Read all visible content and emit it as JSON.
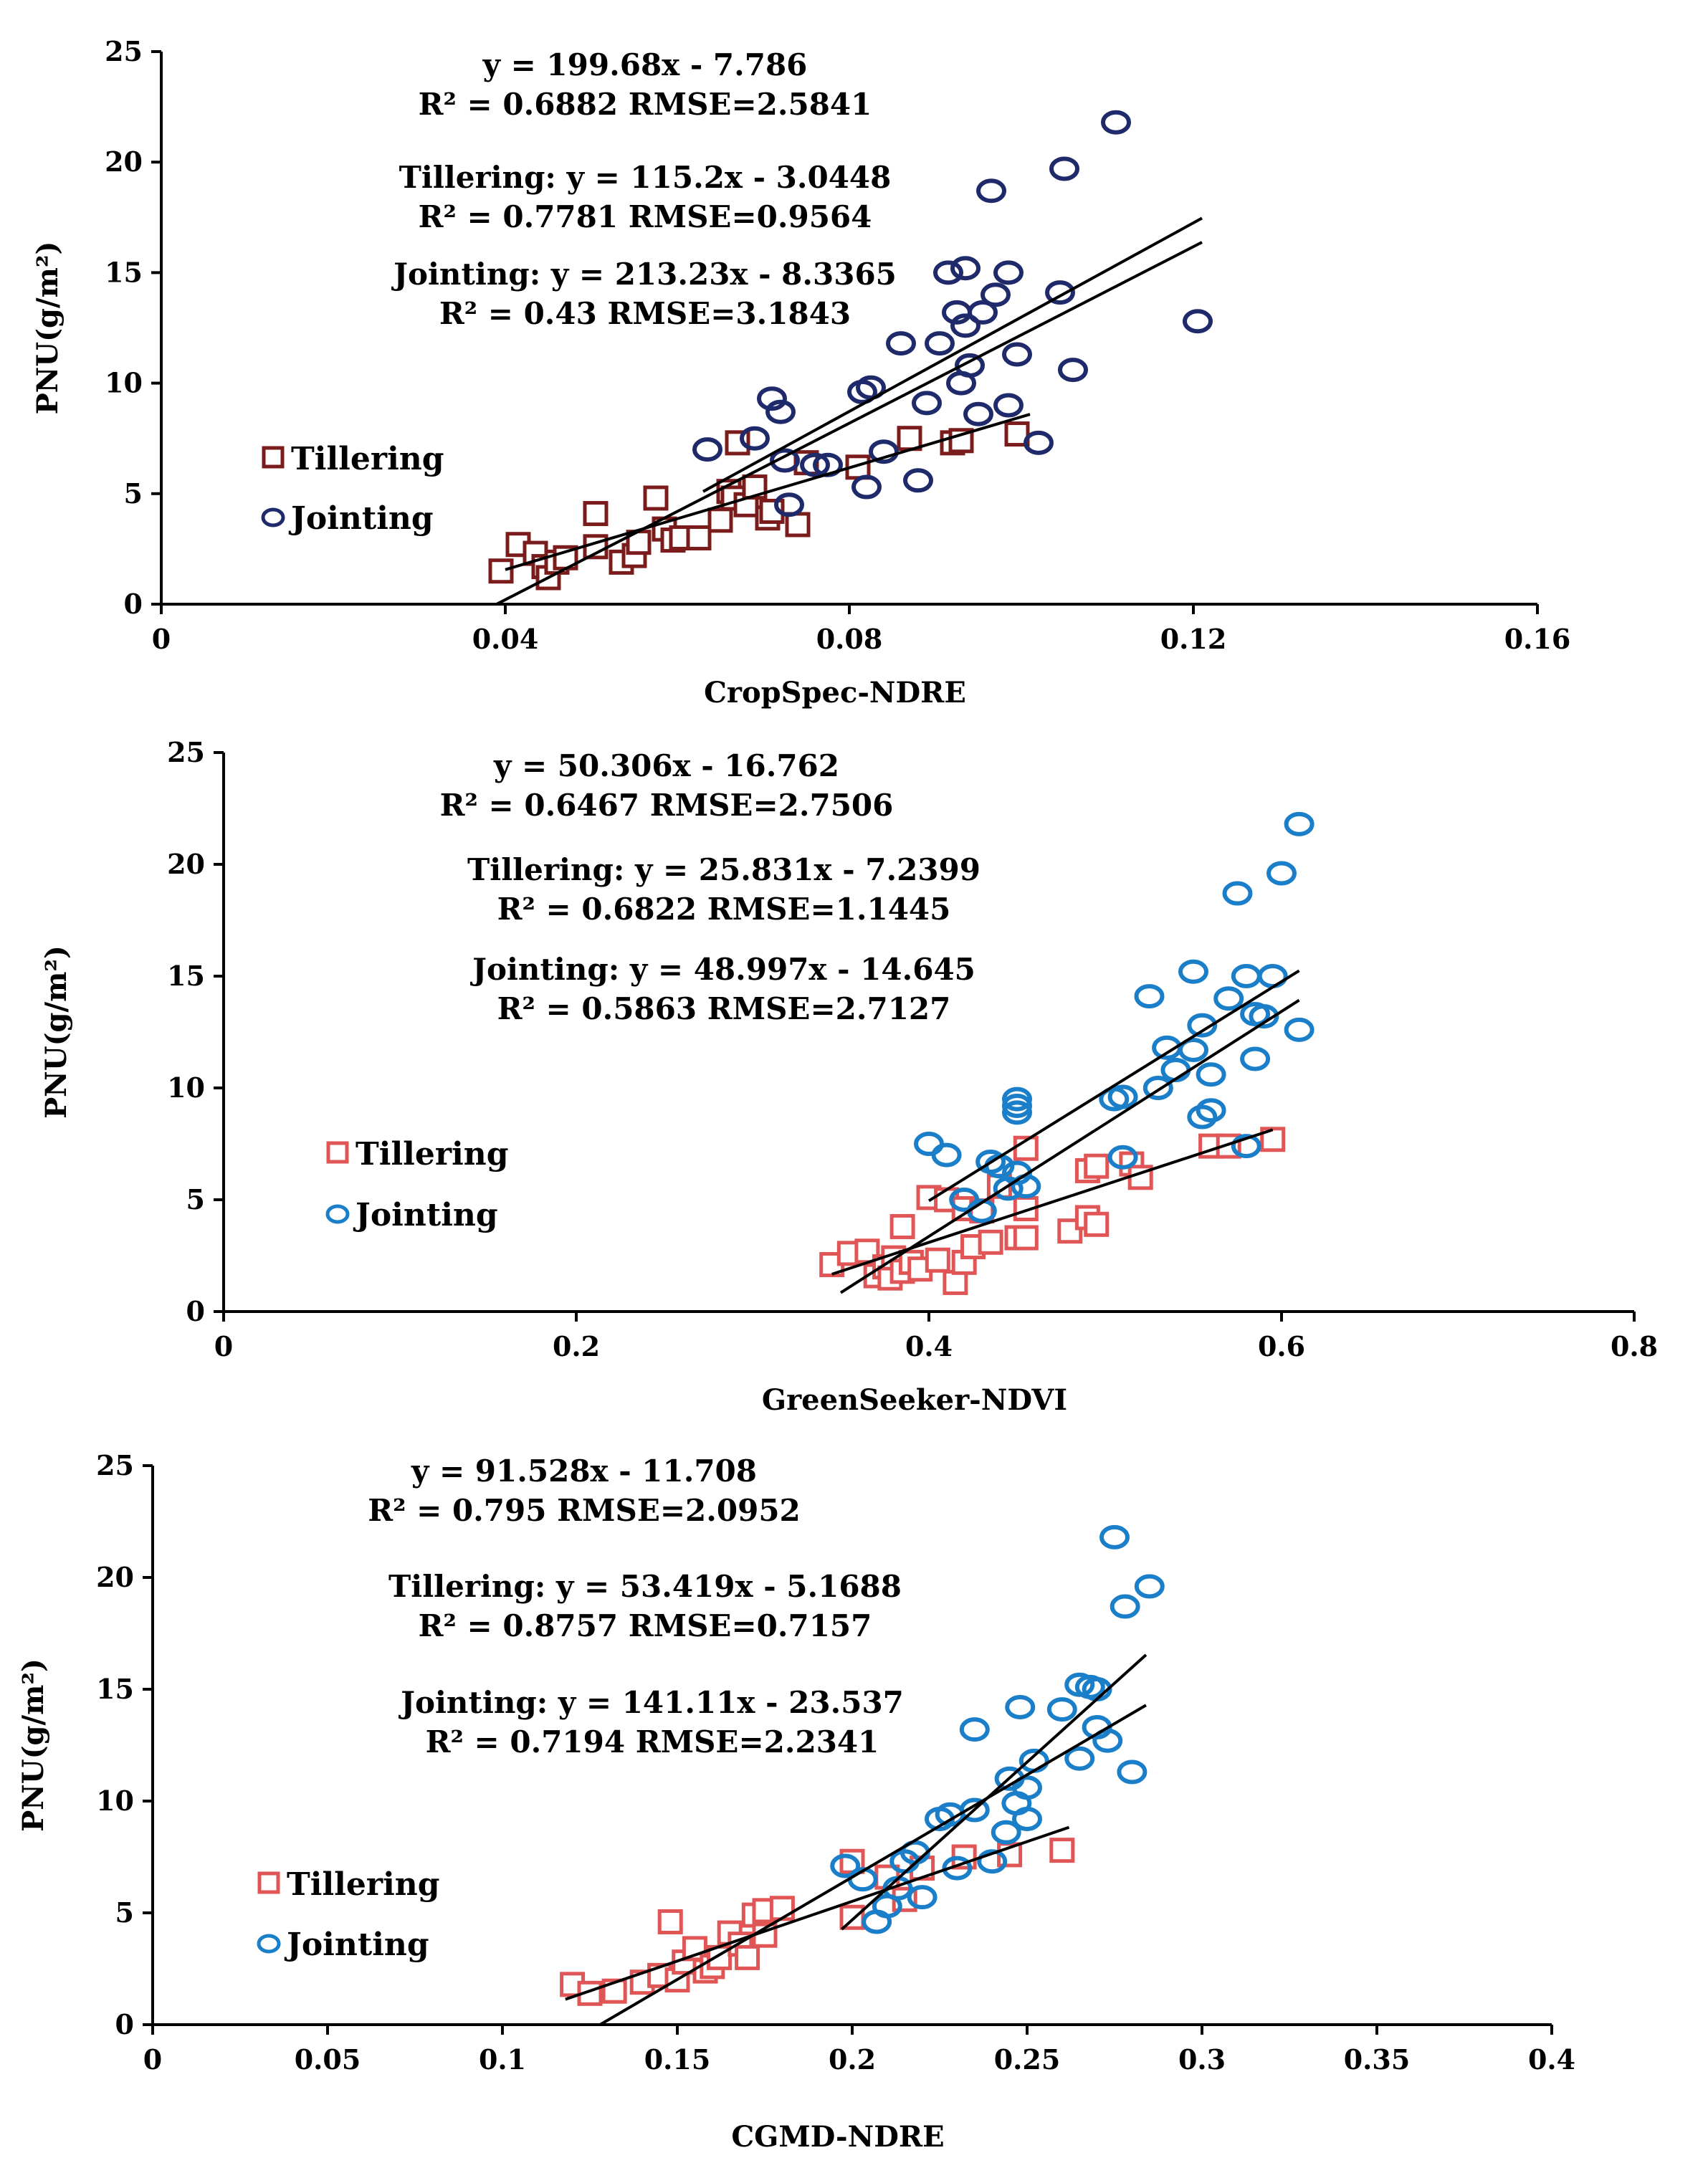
{
  "chart_data": [
    {
      "type": "scatter",
      "xlabel": "CropSpec-NDRE",
      "ylabel": "PNU(g/m²)",
      "xlim": [
        0,
        0.16
      ],
      "ylim": [
        0,
        25
      ],
      "xticks": [
        "0",
        "0.04",
        "0.08",
        "0.12",
        "0.16"
      ],
      "yticks": [
        "0",
        "5",
        "10",
        "15",
        "20",
        "25"
      ],
      "xtick_values": [
        0,
        0.04,
        0.08,
        0.12,
        0.16
      ],
      "ytick_values": [
        0,
        5,
        10,
        15,
        20,
        25
      ],
      "legend": [
        "Tillering",
        "Jointing"
      ],
      "legend_position": "center-left",
      "equations": [
        {
          "line1": "y = 199.68x - 7.786",
          "line2": "R² = 0.6882  RMSE=2.5841"
        },
        {
          "line1": "Tillering: y = 115.2x - 3.0448",
          "line2": "R² = 0.7781  RMSE=0.9564"
        },
        {
          "line1": "Jointing: y = 213.23x - 8.3365",
          "line2": "R² = 0.43  RMSE=3.1843"
        }
      ],
      "colors": {
        "tillering": "#7b1c1c",
        "tillering_fill": "#ffffff",
        "jointing": "#1f2a6b"
      },
      "tillering": [
        [
          0.0395,
          1.5
        ],
        [
          0.0415,
          2.7
        ],
        [
          0.0435,
          2.3
        ],
        [
          0.0445,
          1.7
        ],
        [
          0.045,
          1.2
        ],
        [
          0.046,
          1.9
        ],
        [
          0.047,
          2.1
        ],
        [
          0.0505,
          2.6
        ],
        [
          0.0505,
          4.1
        ],
        [
          0.0535,
          1.9
        ],
        [
          0.055,
          2.2
        ],
        [
          0.0555,
          2.8
        ],
        [
          0.0575,
          4.8
        ],
        [
          0.0585,
          3.4
        ],
        [
          0.0595,
          2.9
        ],
        [
          0.0605,
          3.0
        ],
        [
          0.0625,
          3.0
        ],
        [
          0.065,
          3.8
        ],
        [
          0.066,
          5.1
        ],
        [
          0.0665,
          4.8
        ],
        [
          0.067,
          7.3
        ],
        [
          0.068,
          4.5
        ],
        [
          0.069,
          5.3
        ],
        [
          0.0705,
          3.9
        ],
        [
          0.071,
          4.2
        ],
        [
          0.074,
          3.6
        ],
        [
          0.075,
          6.4
        ],
        [
          0.081,
          6.2
        ],
        [
          0.087,
          7.5
        ],
        [
          0.092,
          7.3
        ],
        [
          0.093,
          7.4
        ],
        [
          0.0995,
          7.7
        ]
      ],
      "jointing": [
        [
          0.0635,
          7.0
        ],
        [
          0.069,
          7.5
        ],
        [
          0.071,
          9.3
        ],
        [
          0.072,
          8.7
        ],
        [
          0.0725,
          6.5
        ],
        [
          0.073,
          4.5
        ],
        [
          0.076,
          6.3
        ],
        [
          0.0775,
          6.3
        ],
        [
          0.0815,
          9.6
        ],
        [
          0.0825,
          9.8
        ],
        [
          0.082,
          5.3
        ],
        [
          0.084,
          6.9
        ],
        [
          0.086,
          11.8
        ],
        [
          0.088,
          5.6
        ],
        [
          0.089,
          9.1
        ],
        [
          0.0905,
          11.8
        ],
        [
          0.0915,
          15.0
        ],
        [
          0.0925,
          13.2
        ],
        [
          0.093,
          10.0
        ],
        [
          0.0935,
          15.2
        ],
        [
          0.0935,
          12.6
        ],
        [
          0.094,
          10.8
        ],
        [
          0.095,
          8.6
        ],
        [
          0.0955,
          13.2
        ],
        [
          0.0965,
          18.7
        ],
        [
          0.097,
          14.0
        ],
        [
          0.0985,
          9.0
        ],
        [
          0.0985,
          15.0
        ],
        [
          0.0995,
          11.3
        ],
        [
          0.102,
          7.3
        ],
        [
          0.1045,
          14.1
        ],
        [
          0.105,
          19.7
        ],
        [
          0.106,
          10.6
        ],
        [
          0.111,
          21.8
        ],
        [
          0.1205,
          12.8
        ]
      ],
      "fits": [
        {
          "series": "all",
          "slope": 199.68,
          "intercept": -7.786,
          "x": [
            0.039,
            0.121
          ]
        },
        {
          "series": "tillering",
          "slope": 115.2,
          "intercept": -3.0448,
          "x": [
            0.04,
            0.101
          ]
        },
        {
          "series": "jointing",
          "slope": 213.23,
          "intercept": -8.3365,
          "x": [
            0.063,
            0.121
          ]
        }
      ]
    },
    {
      "type": "scatter",
      "xlabel": "GreenSeeker-NDVI",
      "ylabel": "PNU(g/m²)",
      "xlim": [
        0,
        0.8
      ],
      "ylim": [
        0,
        25
      ],
      "xticks": [
        "0",
        "0.2",
        "0.4",
        "0.6",
        "0.8"
      ],
      "yticks": [
        "0",
        "5",
        "10",
        "15",
        "20",
        "25"
      ],
      "xtick_values": [
        0,
        0.2,
        0.4,
        0.6,
        0.8
      ],
      "ytick_values": [
        0,
        5,
        10,
        15,
        20,
        25
      ],
      "legend": [
        "Tillering",
        "Jointing"
      ],
      "legend_position": "center-left",
      "equations": [
        {
          "line1": "y = 50.306x - 16.762",
          "line2": "R² = 0.6467  RMSE=2.7506"
        },
        {
          "line1": "Tillering: y = 25.831x - 7.2399",
          "line2": "R² = 0.6822  RMSE=1.1445"
        },
        {
          "line1": "Jointing: y = 48.997x - 14.645",
          "line2": "R² = 0.5863  RMSE=2.7127"
        }
      ],
      "colors": {
        "tillering": "#e05555",
        "tillering_fill": "#ffffff",
        "jointing": "#1a7fc8"
      },
      "tillering": [
        [
          0.345,
          2.1
        ],
        [
          0.355,
          2.6
        ],
        [
          0.365,
          2.7
        ],
        [
          0.37,
          1.6
        ],
        [
          0.375,
          2.0
        ],
        [
          0.378,
          1.5
        ],
        [
          0.38,
          2.4
        ],
        [
          0.385,
          1.8
        ],
        [
          0.385,
          3.8
        ],
        [
          0.39,
          2.2
        ],
        [
          0.395,
          1.9
        ],
        [
          0.4,
          5.1
        ],
        [
          0.405,
          2.3
        ],
        [
          0.41,
          5.0
        ],
        [
          0.415,
          1.3
        ],
        [
          0.42,
          4.6
        ],
        [
          0.42,
          2.2
        ],
        [
          0.425,
          2.9
        ],
        [
          0.43,
          4.5
        ],
        [
          0.435,
          3.1
        ],
        [
          0.44,
          5.6
        ],
        [
          0.45,
          3.3
        ],
        [
          0.455,
          4.6
        ],
        [
          0.455,
          3.3
        ],
        [
          0.455,
          7.3
        ],
        [
          0.48,
          3.6
        ],
        [
          0.49,
          4.2
        ],
        [
          0.49,
          6.3
        ],
        [
          0.495,
          6.5
        ],
        [
          0.495,
          3.9
        ],
        [
          0.515,
          6.6
        ],
        [
          0.52,
          6.0
        ],
        [
          0.56,
          7.4
        ],
        [
          0.57,
          7.4
        ],
        [
          0.595,
          7.7
        ]
      ],
      "jointing": [
        [
          0.4,
          7.5
        ],
        [
          0.41,
          7.0
        ],
        [
          0.42,
          5.0
        ],
        [
          0.43,
          4.5
        ],
        [
          0.435,
          6.7
        ],
        [
          0.44,
          6.5
        ],
        [
          0.445,
          5.5
        ],
        [
          0.45,
          6.2
        ],
        [
          0.45,
          9.5
        ],
        [
          0.45,
          9.2
        ],
        [
          0.45,
          8.9
        ],
        [
          0.455,
          5.6
        ],
        [
          0.505,
          9.5
        ],
        [
          0.51,
          6.9
        ],
        [
          0.51,
          9.6
        ],
        [
          0.525,
          14.1
        ],
        [
          0.53,
          10.0
        ],
        [
          0.535,
          11.8
        ],
        [
          0.54,
          10.8
        ],
        [
          0.55,
          15.2
        ],
        [
          0.55,
          11.7
        ],
        [
          0.555,
          12.8
        ],
        [
          0.555,
          8.7
        ],
        [
          0.56,
          10.6
        ],
        [
          0.56,
          9.0
        ],
        [
          0.57,
          14.0
        ],
        [
          0.575,
          18.7
        ],
        [
          0.58,
          15.0
        ],
        [
          0.585,
          13.3
        ],
        [
          0.585,
          11.3
        ],
        [
          0.59,
          13.2
        ],
        [
          0.595,
          15.0
        ],
        [
          0.6,
          19.6
        ],
        [
          0.61,
          12.6
        ],
        [
          0.61,
          21.8
        ],
        [
          0.58,
          7.4
        ]
      ],
      "fits": [
        {
          "series": "all",
          "slope": 50.306,
          "intercept": -16.762,
          "x": [
            0.35,
            0.61
          ]
        },
        {
          "series": "tillering",
          "slope": 25.831,
          "intercept": -7.2399,
          "x": [
            0.345,
            0.595
          ]
        },
        {
          "series": "jointing",
          "slope": 48.997,
          "intercept": -14.645,
          "x": [
            0.4,
            0.61
          ]
        }
      ]
    },
    {
      "type": "scatter",
      "xlabel": "CGMD-NDRE",
      "ylabel": "PNU(g/m²)",
      "xlim": [
        0,
        0.4
      ],
      "ylim": [
        0,
        25
      ],
      "xticks": [
        "0",
        "0.05",
        "0.1",
        "0.15",
        "0.2",
        "0.25",
        "0.3",
        "0.35",
        "0.4"
      ],
      "yticks": [
        "0",
        "5",
        "10",
        "15",
        "20",
        "25"
      ],
      "xtick_values": [
        0,
        0.05,
        0.1,
        0.15,
        0.2,
        0.25,
        0.3,
        0.35,
        0.4
      ],
      "ytick_values": [
        0,
        5,
        10,
        15,
        20,
        25
      ],
      "legend": [
        "Tillering",
        "Jointing"
      ],
      "legend_position": "bottom-left",
      "equations": [
        {
          "line1": "y = 91.528x - 11.708",
          "line2": "R² = 0.795  RMSE=2.0952"
        },
        {
          "line1": "Tillering: y = 53.419x - 5.1688",
          "line2": "R² = 0.8757  RMSE=0.7157"
        },
        {
          "line1": "Jointing: y = 141.11x - 23.537",
          "line2": "R² = 0.7194  RMSE=2.2341"
        }
      ],
      "colors": {
        "tillering": "#e05555",
        "tillering_fill": "#ffffff",
        "jointing": "#1a7fc8"
      },
      "tillering": [
        [
          0.12,
          1.8
        ],
        [
          0.125,
          1.4
        ],
        [
          0.132,
          1.5
        ],
        [
          0.14,
          1.9
        ],
        [
          0.145,
          2.2
        ],
        [
          0.148,
          4.6
        ],
        [
          0.15,
          2.0
        ],
        [
          0.152,
          2.8
        ],
        [
          0.155,
          3.4
        ],
        [
          0.158,
          2.4
        ],
        [
          0.16,
          2.6
        ],
        [
          0.162,
          3.0
        ],
        [
          0.165,
          4.1
        ],
        [
          0.168,
          3.6
        ],
        [
          0.17,
          3.0
        ],
        [
          0.172,
          4.9
        ],
        [
          0.175,
          5.1
        ],
        [
          0.175,
          4.0
        ],
        [
          0.18,
          5.2
        ],
        [
          0.2,
          4.8
        ],
        [
          0.2,
          7.3
        ],
        [
          0.21,
          6.6
        ],
        [
          0.215,
          5.6
        ],
        [
          0.22,
          7.0
        ],
        [
          0.232,
          7.5
        ],
        [
          0.245,
          7.6
        ],
        [
          0.26,
          7.8
        ]
      ],
      "jointing": [
        [
          0.198,
          7.1
        ],
        [
          0.203,
          6.5
        ],
        [
          0.207,
          4.6
        ],
        [
          0.21,
          5.3
        ],
        [
          0.213,
          6.1
        ],
        [
          0.215,
          7.3
        ],
        [
          0.218,
          7.7
        ],
        [
          0.22,
          5.7
        ],
        [
          0.225,
          9.2
        ],
        [
          0.228,
          9.4
        ],
        [
          0.23,
          7.0
        ],
        [
          0.235,
          9.6
        ],
        [
          0.235,
          13.2
        ],
        [
          0.24,
          7.3
        ],
        [
          0.244,
          8.6
        ],
        [
          0.245,
          11.0
        ],
        [
          0.247,
          9.9
        ],
        [
          0.248,
          14.2
        ],
        [
          0.25,
          10.6
        ],
        [
          0.25,
          9.2
        ],
        [
          0.252,
          11.8
        ],
        [
          0.26,
          14.1
        ],
        [
          0.265,
          15.2
        ],
        [
          0.265,
          11.9
        ],
        [
          0.268,
          15.1
        ],
        [
          0.27,
          13.3
        ],
        [
          0.27,
          15.0
        ],
        [
          0.273,
          12.7
        ],
        [
          0.275,
          21.8
        ],
        [
          0.278,
          18.7
        ],
        [
          0.28,
          11.3
        ],
        [
          0.285,
          19.6
        ]
      ],
      "fits": [
        {
          "series": "all",
          "slope": 91.528,
          "intercept": -11.708,
          "x": [
            0.128,
            0.284
          ]
        },
        {
          "series": "tillering",
          "slope": 53.419,
          "intercept": -5.1688,
          "x": [
            0.118,
            0.262
          ]
        },
        {
          "series": "jointing",
          "slope": 141.11,
          "intercept": -23.537,
          "x": [
            0.197,
            0.284
          ]
        }
      ]
    }
  ]
}
